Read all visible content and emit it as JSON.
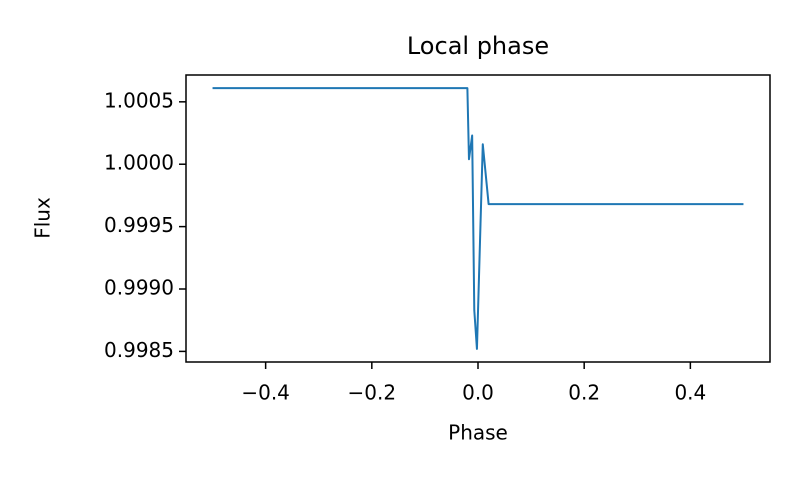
{
  "chart_data": {
    "type": "line",
    "title": "Local phase",
    "xlabel": "Phase",
    "ylabel": "Flux",
    "x": [
      -0.5,
      -0.02,
      -0.017,
      -0.011,
      -0.007,
      -0.002,
      0.009,
      0.02,
      0.5
    ],
    "series": [
      {
        "name": "Flux",
        "color": "#1f77b4",
        "values": [
          1.00061,
          1.00061,
          1.00004,
          1.00023,
          0.99883,
          0.99852,
          1.00016,
          0.99968,
          0.99968
        ]
      }
    ],
    "xlim": [
      -0.55,
      0.55
    ],
    "xticks": [
      {
        "value": -0.4,
        "label": "−0.4"
      },
      {
        "value": -0.2,
        "label": "−0.2"
      },
      {
        "value": 0,
        "label": "0.0"
      },
      0.2,
      0.4
    ],
    "ylim": [
      0.998415,
      1.000715
    ],
    "yticks": [
      1.0005,
      {
        "value": 1,
        "label": "1.0000"
      },
      0.9995,
      {
        "value": 0.999,
        "label": "0.9990"
      },
      0.9985
    ]
  }
}
